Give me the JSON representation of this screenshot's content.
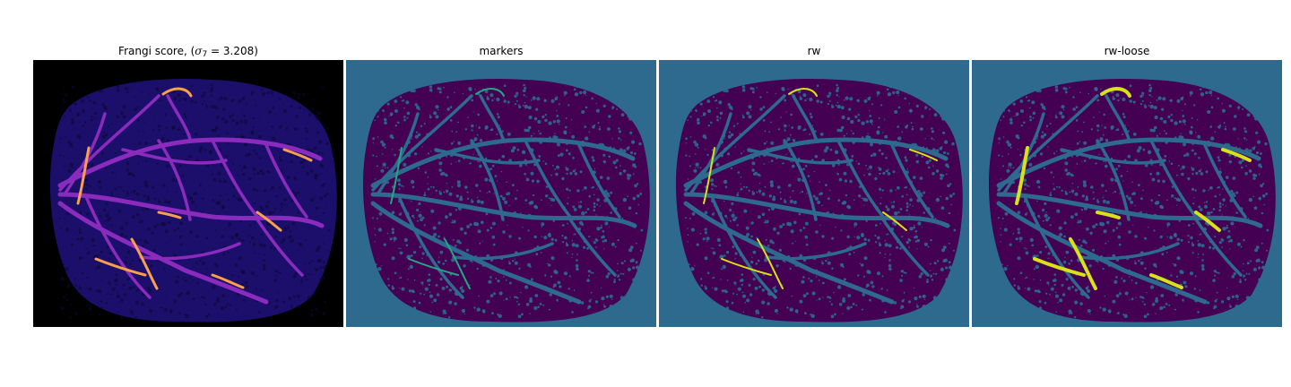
{
  "panels": [
    {
      "id": "frangi",
      "title_prefix": "Frangi score, (",
      "title_sigma": "σ",
      "title_sub": "7",
      "title_suffix": " = 3.208)",
      "colormap": "magma",
      "background": "#000000",
      "mask": "#1c0f6b",
      "vessel": "#8a2bbd",
      "highlight": "#f8a04a"
    },
    {
      "id": "markers",
      "title": "markers",
      "colormap": "viridis",
      "background": "#2e6a8d",
      "mask": "#440154",
      "vessel": "#2e6a8d",
      "highlight": "#22a884"
    },
    {
      "id": "rw",
      "title": "rw",
      "colormap": "viridis",
      "background": "#2e6a8d",
      "mask": "#440154",
      "vessel": "#2e6a8d",
      "highlight": "#d7e219"
    },
    {
      "id": "rw-loose",
      "title": "rw-loose",
      "colormap": "viridis",
      "background": "#2e6a8d",
      "mask": "#440154",
      "vessel": "#2e6a8d",
      "highlight": "#d7e219"
    }
  ]
}
